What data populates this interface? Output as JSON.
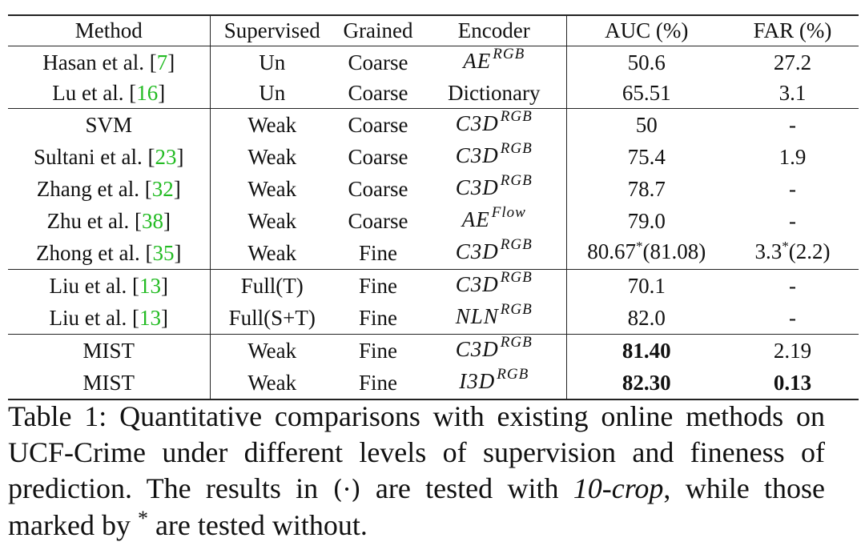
{
  "table": {
    "headers": {
      "method": "Method",
      "supervised": "Supervised",
      "grained": "Grained",
      "encoder": "Encoder",
      "auc": "AUC (%)",
      "far": "FAR (%)"
    },
    "rows": [
      {
        "method": "Hasan et al. [",
        "cite": "7",
        "method_end": "]",
        "supervised": "Un",
        "grained": "Coarse",
        "encoder_base": "AE",
        "encoder_sup": "RGB",
        "auc": "50.6",
        "far": "27.2"
      },
      {
        "method": "Lu et al. [",
        "cite": "16",
        "method_end": "]",
        "supervised": "Un",
        "grained": "Coarse",
        "encoder_plain": "Dictionary",
        "auc": "65.51",
        "far": "3.1"
      },
      {
        "method": "SVM",
        "supervised": "Weak",
        "grained": "Coarse",
        "encoder_base": "C3D",
        "encoder_sup": "RGB",
        "auc": "50",
        "far": "-"
      },
      {
        "method": "Sultani et al. [",
        "cite": "23",
        "method_end": "]",
        "supervised": "Weak",
        "grained": "Coarse",
        "encoder_base": "C3D",
        "encoder_sup": "RGB",
        "auc": "75.4",
        "far": "1.9"
      },
      {
        "method": "Zhang et al. [",
        "cite": "32",
        "method_end": "]",
        "supervised": "Weak",
        "grained": "Coarse",
        "encoder_base": "C3D",
        "encoder_sup": "RGB",
        "auc": "78.7",
        "far": "-"
      },
      {
        "method": "Zhu et al. [",
        "cite": "38",
        "method_end": "]",
        "supervised": "Weak",
        "grained": "Coarse",
        "encoder_base": "AE",
        "encoder_sup": "Flow",
        "auc": "79.0",
        "far": "-"
      },
      {
        "method": "Zhong et al. [",
        "cite": "35",
        "method_end": "]",
        "supervised": "Weak",
        "grained": "Fine",
        "encoder_base": "C3D",
        "encoder_sup": "RGB",
        "auc_main": "80.67",
        "auc_star": "*",
        "auc_paren": "(81.08)",
        "far_main": "3.3",
        "far_star": "*",
        "far_paren": "(2.2)"
      },
      {
        "method": "Liu et al. [",
        "cite": "13",
        "method_end": "]",
        "supervised": "Full(T)",
        "grained": "Fine",
        "encoder_base": "C3D",
        "encoder_sup": "RGB",
        "auc": "70.1",
        "far": "-"
      },
      {
        "method": "Liu et al. [",
        "cite": "13",
        "method_end": "]",
        "supervised": "Full(S+T)",
        "grained": "Fine",
        "encoder_base": "NLN",
        "encoder_sup": "RGB",
        "auc": "82.0",
        "far": "-"
      },
      {
        "method": "MIST",
        "supervised": "Weak",
        "grained": "Fine",
        "encoder_base": "C3D",
        "encoder_sup": "RGB",
        "auc": "81.40",
        "far": "2.19"
      },
      {
        "method": "MIST",
        "supervised": "Weak",
        "grained": "Fine",
        "encoder_base": "I3D",
        "encoder_sup": "RGB",
        "auc": "82.30",
        "far": "0.13"
      }
    ]
  },
  "caption": {
    "part1": "Table 1:  Quantitative comparisons with existing online methods on UCF-Crime under different levels of supervision and fineness of prediction. The results in ",
    "paren": "(·)",
    "part2": " are tested with ",
    "italic": "10-crop",
    "part3": ", while those marked by ",
    "star": "*",
    "part4": " are tested without."
  }
}
